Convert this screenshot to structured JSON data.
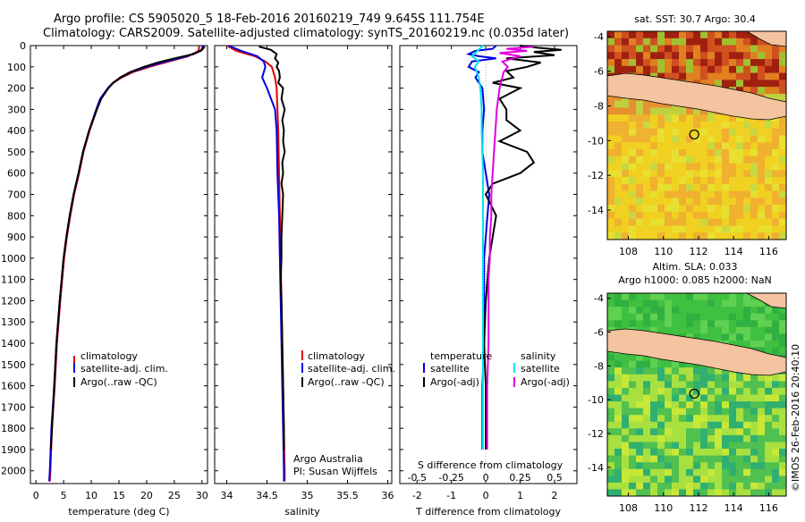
{
  "title": {
    "line1": "Argo profile: CS 5905020_5 18-Feb-2016 20160219_749 9.645S 111.754E",
    "line2": "Climatology: CARS2009. Satellite-adjusted climatology: synTS_20160219.nc (0.035d later)"
  },
  "depth_ticks": [
    "0",
    "100",
    "200",
    "300",
    "400",
    "500",
    "600",
    "700",
    "800",
    "900",
    "1000",
    "1100",
    "1200",
    "1300",
    "1400",
    "1500",
    "1600",
    "1700",
    "1800",
    "1900",
    "2000"
  ],
  "colors": {
    "climatology": "#e00000",
    "satellite": "#0000e0",
    "argo": "#000000",
    "sal_satellite": "#00e5ee",
    "sal_argo": "#e000e0"
  },
  "chart_data": [
    {
      "type": "line",
      "name": "temperature",
      "xlabel": "temperature (deg C)",
      "xlim": [
        -1,
        31
      ],
      "ylim": [
        2060,
        0
      ],
      "xticks": [
        "0",
        "5",
        "10",
        "15",
        "20",
        "25",
        "30"
      ],
      "legend": [
        "climatology",
        "satellite-adj. clim.",
        "Argo(..raw -QC)"
      ],
      "series": [
        {
          "name": "climatology",
          "depth": [
            0,
            25,
            50,
            75,
            100,
            125,
            150,
            175,
            200,
            250,
            300,
            400,
            500,
            600,
            700,
            800,
            900,
            1000,
            1200,
            1400,
            1600,
            1800,
            2000,
            2050
          ],
          "values": [
            29.5,
            29.4,
            27.5,
            24,
            20.5,
            17.5,
            15.5,
            14,
            13,
            11.7,
            11,
            9.7,
            8.6,
            7.8,
            6.9,
            6.2,
            5.6,
            5.1,
            4.4,
            3.8,
            3.4,
            2.9,
            2.6,
            2.5
          ]
        },
        {
          "name": "satellite-adj. clim.",
          "depth": [
            0,
            25,
            50,
            75,
            100,
            125,
            150,
            175,
            200,
            250,
            300,
            400,
            500,
            600,
            700,
            800,
            900,
            1000,
            1200,
            1400,
            1600,
            1800,
            2000,
            2050
          ],
          "values": [
            30.3,
            29.8,
            27.3,
            23.5,
            20,
            17.2,
            15.3,
            13.9,
            13,
            11.6,
            10.9,
            9.6,
            8.5,
            7.7,
            6.8,
            6.1,
            5.5,
            5,
            4.3,
            3.7,
            3.3,
            2.8,
            2.5,
            2.4
          ]
        },
        {
          "name": "Argo(..raw -QC)",
          "depth": [
            5,
            20,
            40,
            60,
            80,
            100,
            125,
            150,
            175,
            200,
            250,
            300,
            400,
            500,
            600,
            700,
            800,
            900,
            1000,
            1200,
            1400,
            1600,
            1800,
            1900
          ],
          "values": [
            30.5,
            30,
            28.5,
            25,
            22,
            19.5,
            17,
            15.2,
            14,
            13.1,
            11.8,
            11,
            9.6,
            8.5,
            7.7,
            6.8,
            6.1,
            5.5,
            5,
            4.3,
            3.7,
            3.3,
            2.9,
            2.7
          ]
        }
      ]
    },
    {
      "type": "line",
      "name": "salinity",
      "xlabel": "salinity",
      "xlim": [
        33.85,
        36.05
      ],
      "ylim": [
        2060,
        0
      ],
      "xticks": [
        "34",
        "34.5",
        "35",
        "35.5",
        "36"
      ],
      "legend": [
        "climatology",
        "satellite-adj. clim.",
        "Argo(..raw -QC)"
      ],
      "annotation": [
        "Argo Australia",
        "PI: Susan Wijffels"
      ],
      "series": [
        {
          "name": "climatology",
          "depth": [
            0,
            25,
            50,
            75,
            100,
            150,
            200,
            300,
            400,
            600,
            800,
            1000,
            1200,
            1400,
            1600,
            1800,
            2000,
            2050
          ],
          "values": [
            34.0,
            34.12,
            34.35,
            34.48,
            34.56,
            34.6,
            34.62,
            34.63,
            34.64,
            34.65,
            34.66,
            34.67,
            34.68,
            34.69,
            34.7,
            34.71,
            34.72,
            34.72
          ]
        },
        {
          "name": "satellite-adj. clim.",
          "depth": [
            0,
            25,
            50,
            75,
            100,
            150,
            200,
            300,
            400,
            600,
            800,
            1000,
            1200,
            1400,
            1600,
            1800,
            2000,
            2050
          ],
          "values": [
            34.02,
            34.18,
            34.38,
            34.46,
            34.48,
            34.44,
            34.5,
            34.6,
            34.62,
            34.63,
            34.65,
            34.66,
            34.67,
            34.68,
            34.69,
            34.7,
            34.71,
            34.71
          ]
        },
        {
          "name": "Argo(..raw -QC)",
          "depth": [
            5,
            20,
            40,
            60,
            80,
            100,
            120,
            150,
            175,
            200,
            250,
            300,
            350,
            400,
            450,
            500,
            550,
            600,
            650,
            700,
            800,
            900,
            1000,
            1100,
            1200,
            1400,
            1600,
            1800,
            1900
          ],
          "values": [
            34.4,
            34.55,
            34.62,
            34.6,
            34.64,
            34.62,
            34.65,
            34.66,
            34.64,
            34.7,
            34.68,
            34.72,
            34.69,
            34.71,
            34.7,
            34.72,
            34.69,
            34.7,
            34.68,
            34.7,
            34.69,
            34.68,
            34.68,
            34.67,
            34.68,
            34.69,
            34.7,
            34.71,
            34.71
          ]
        }
      ]
    },
    {
      "type": "line",
      "name": "differences",
      "xlabel": "T difference from climatology",
      "xlabel_top": "S difference from climatology",
      "xlim": [
        -2.5,
        2.65
      ],
      "xlim_s": [
        -0.625,
        0.6625
      ],
      "ylim": [
        2060,
        0
      ],
      "xticks": [
        "-2",
        "-1",
        "0",
        "1",
        "2"
      ],
      "xticks_s": [
        "-0.5",
        "-0.25",
        "0",
        "0.25",
        "0.5"
      ],
      "legend_temperature_title": "temperature",
      "legend_salinity_title": "salinity",
      "legend": [
        "satellite",
        "Argo(-adj)",
        "satellite",
        "Argo(-adj)"
      ],
      "series": [
        {
          "name": "temperature satellite",
          "depth": [
            0,
            15,
            25,
            40,
            50,
            60,
            75,
            100,
            125,
            150,
            200,
            300,
            400,
            500,
            600,
            700,
            800,
            900,
            1000,
            1200,
            1400,
            1600,
            1800,
            1900
          ],
          "values": [
            0.3,
            0.2,
            -0.3,
            -0.5,
            -0.2,
            0.3,
            -0.4,
            -0.5,
            -0.2,
            -0.3,
            -0.1,
            -0.05,
            -0.1,
            -0.1,
            0,
            0.1,
            0.05,
            0,
            -0.05,
            -0.05,
            -0.05,
            -0.1,
            -0.1,
            -0.1
          ]
        },
        {
          "name": "temperature Argo(-adj)",
          "depth": [
            0,
            10,
            20,
            30,
            45,
            60,
            80,
            100,
            120,
            150,
            175,
            200,
            250,
            300,
            350,
            400,
            450,
            500,
            550,
            600,
            650,
            700,
            800,
            900,
            1000,
            1100,
            1200,
            1400,
            1600,
            1800,
            1900
          ],
          "values": [
            1.0,
            1.5,
            2.2,
            1.4,
            2.0,
            0.6,
            1.6,
            1.2,
            0.6,
            0.8,
            0.2,
            1.0,
            0.4,
            0.6,
            0.6,
            1.0,
            0.4,
            1.2,
            1.4,
            1.0,
            0.2,
            0.0,
            0.3,
            0.2,
            0.1,
            0.05,
            0.0,
            -0.05,
            0.0,
            0.0,
            0.0
          ]
        },
        {
          "name": "salinity satellite",
          "depth": [
            0,
            25,
            50,
            75,
            100,
            150,
            200,
            300,
            400,
            600,
            800,
            1000,
            1200,
            1400,
            1600,
            1800,
            1900
          ],
          "values": [
            -0.02,
            -0.06,
            -0.1,
            -0.05,
            -0.08,
            -0.05,
            -0.04,
            -0.03,
            -0.03,
            -0.02,
            -0.02,
            -0.02,
            -0.02,
            -0.02,
            -0.02,
            -0.02,
            -0.02
          ]
        },
        {
          "name": "salinity Argo(-adj)",
          "depth": [
            5,
            15,
            25,
            35,
            50,
            75,
            100,
            125,
            150,
            200,
            250,
            300,
            400,
            500,
            600,
            700,
            800,
            900,
            1000,
            1100,
            1200,
            1400,
            1600,
            1800,
            1900
          ],
          "values": [
            0.35,
            0.15,
            0.3,
            0.1,
            0.25,
            0.12,
            0.16,
            0.13,
            0.12,
            0.1,
            0.09,
            0.08,
            0.07,
            0.06,
            0.05,
            0.04,
            0.04,
            0.03,
            0.03,
            0.02,
            0.02,
            0.02,
            0.01,
            0.01,
            0.01
          ]
        }
      ]
    },
    {
      "type": "heatmap",
      "name": "satellite SST map",
      "title": "sat. SST: 30.7  Argo: 30.4",
      "xticks": [
        "108",
        "110",
        "112",
        "114",
        "116"
      ],
      "yticks": [
        "-4",
        "-6",
        "-8",
        "-10",
        "-12",
        "-14"
      ],
      "xlim": [
        106.8,
        117
      ],
      "ylim": [
        -15.7,
        -3.7
      ],
      "argo_position": {
        "lon": 111.754,
        "lat": -9.645
      }
    },
    {
      "type": "heatmap",
      "name": "altimetry SLA map",
      "title_line1": "Altim. SLA: 0.033",
      "title_line2": "Argo h1000: 0.085 h2000: NaN",
      "xticks": [
        "108",
        "110",
        "112",
        "114",
        "116"
      ],
      "yticks": [
        "-4",
        "-6",
        "-8",
        "-10",
        "-12",
        "-14"
      ],
      "xlim": [
        106.8,
        117
      ],
      "ylim": [
        -15.7,
        -3.7
      ],
      "argo_position": {
        "lon": 111.754,
        "lat": -9.645
      }
    }
  ],
  "watermark": "©IMOS 26-Feb-2016 20:40:10"
}
